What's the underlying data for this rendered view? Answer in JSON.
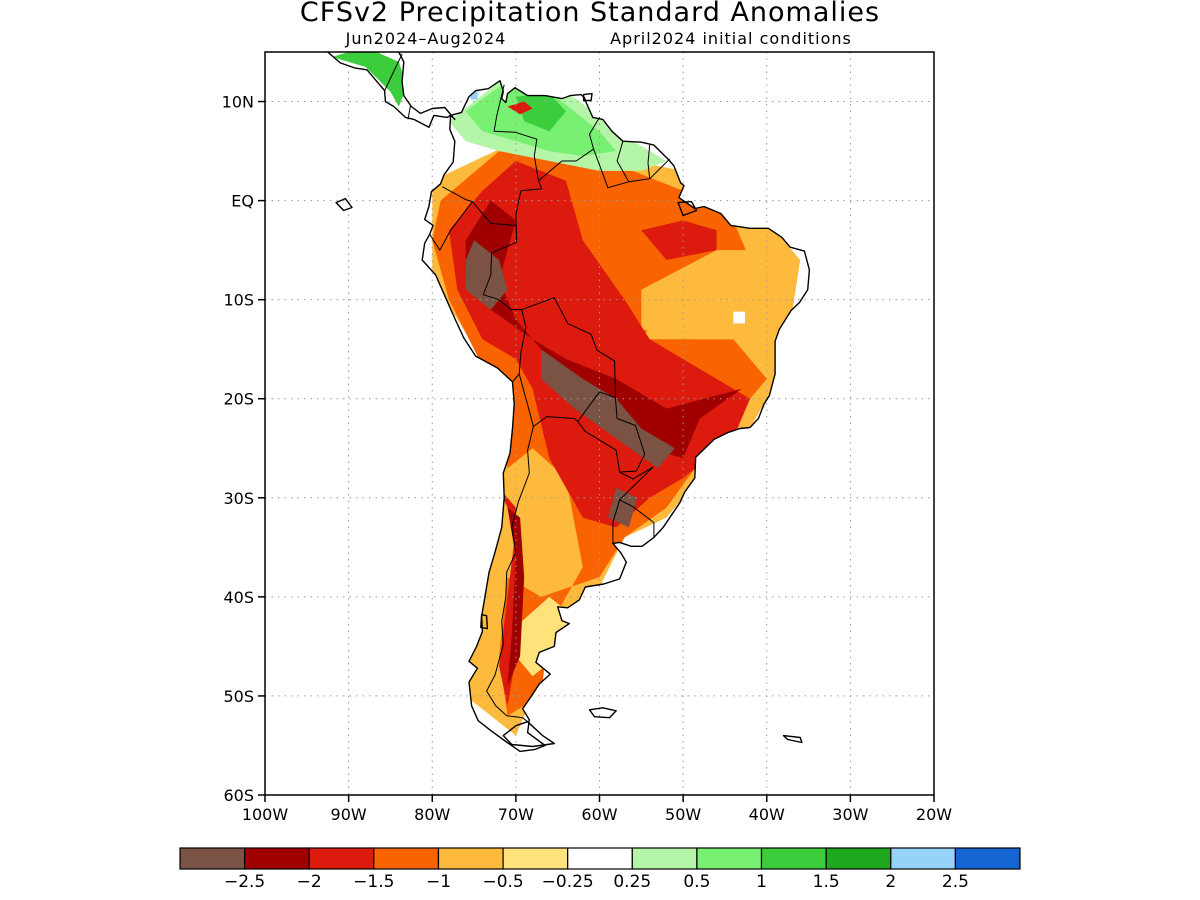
{
  "title": "CFSv2 Precipitation Standard Anomalies",
  "subtitle_left": "Jun2024–Aug2024",
  "subtitle_right": "April2024 initial conditions",
  "map": {
    "lon_range": [
      -100,
      -20
    ],
    "lat_range": [
      -60,
      15
    ],
    "lat_ticks": [
      {
        "value": 10,
        "label": "10N"
      },
      {
        "value": 0,
        "label": "EQ"
      },
      {
        "value": -10,
        "label": "10S"
      },
      {
        "value": -20,
        "label": "20S"
      },
      {
        "value": -30,
        "label": "30S"
      },
      {
        "value": -40,
        "label": "40S"
      },
      {
        "value": -50,
        "label": "50S"
      },
      {
        "value": -60,
        "label": "60S"
      }
    ],
    "lon_ticks": [
      {
        "value": -100,
        "label": "100W"
      },
      {
        "value": -90,
        "label": "90W"
      },
      {
        "value": -80,
        "label": "80W"
      },
      {
        "value": -70,
        "label": "70W"
      },
      {
        "value": -60,
        "label": "60W"
      },
      {
        "value": -50,
        "label": "50W"
      },
      {
        "value": -40,
        "label": "40W"
      },
      {
        "value": -30,
        "label": "30W"
      },
      {
        "value": -20,
        "label": "20W"
      }
    ]
  },
  "colorbar": {
    "colors": [
      "#7a5345",
      "#a00000",
      "#dc1a0e",
      "#fa6400",
      "#fdba3c",
      "#ffe27a",
      "#ffffff",
      "#b4f5a8",
      "#78f072",
      "#3ccd3c",
      "#1ea81e",
      "#96d2fa",
      "#1464d2"
    ],
    "labels": [
      "−2.5",
      "−2",
      "−1.5",
      "−1",
      "−0.5",
      "−0.25",
      "0.25",
      "0.5",
      "1",
      "1.5",
      "2",
      "2.5"
    ]
  }
}
